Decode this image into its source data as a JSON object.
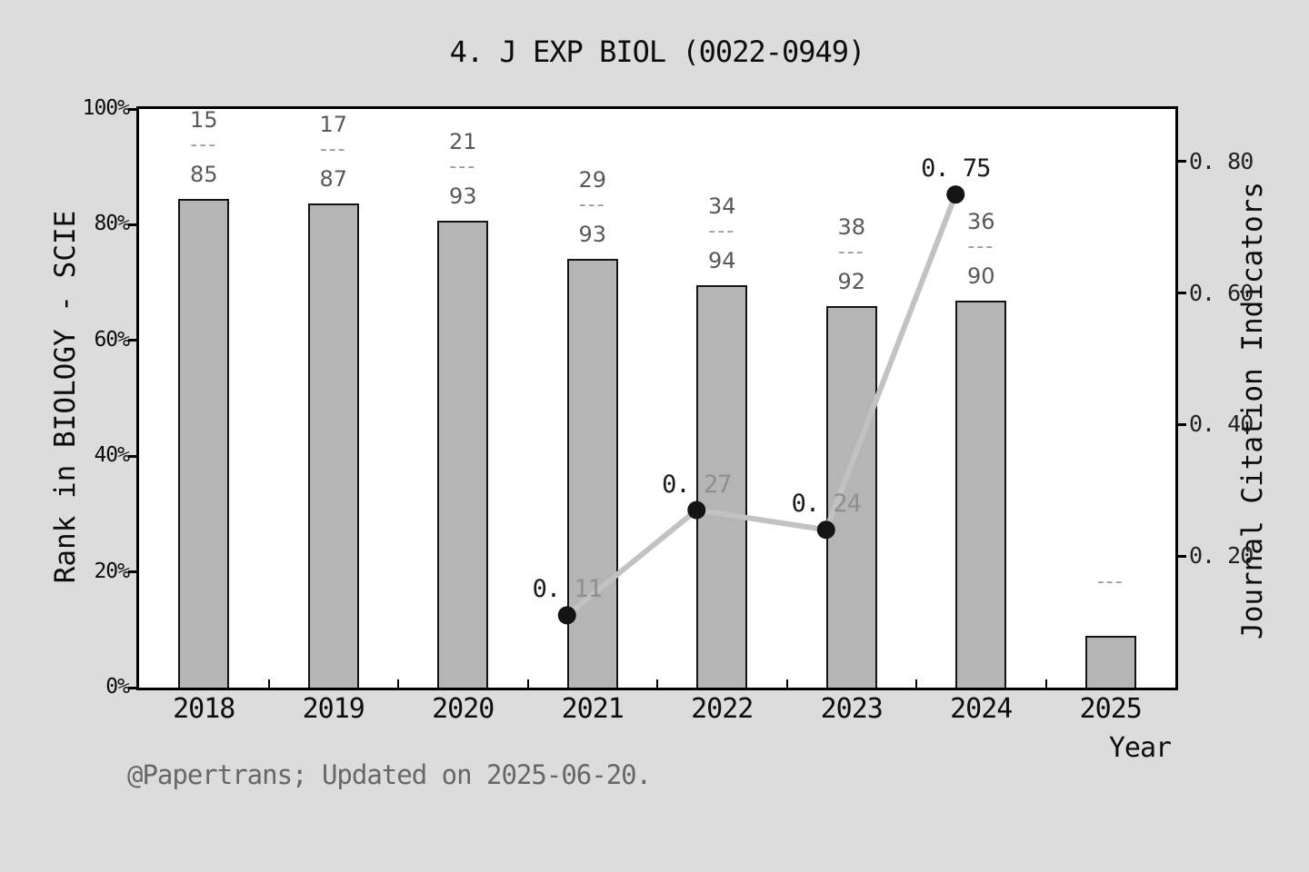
{
  "title": "4. J EXP BIOL (0022-0949)",
  "footer": "@Papertrans; Updated on 2025-06-20.",
  "chart_data": {
    "type": "bar",
    "title": "4. J EXP BIOL (0022-0949)",
    "xlabel": "Year",
    "ylabel_left": "Rank in BIOLOGY - SCIE",
    "ylabel_right": "Journal Citation Indicators",
    "categories": [
      "2018",
      "2019",
      "2020",
      "2021",
      "2022",
      "2023",
      "2024",
      "2025"
    ],
    "bars": {
      "series_name": "Rank in BIOLOGY - SCIE (percentile)",
      "values_pct": [
        84.5,
        83.7,
        80.7,
        74.1,
        69.6,
        65.9,
        66.8,
        9.0
      ],
      "rank_labels": [
        {
          "numerator": "15",
          "denominator": "85"
        },
        {
          "numerator": "17",
          "denominator": "87"
        },
        {
          "numerator": "21",
          "denominator": "93"
        },
        {
          "numerator": "29",
          "denominator": "93"
        },
        {
          "numerator": "34",
          "denominator": "94"
        },
        {
          "numerator": "38",
          "denominator": "92"
        },
        {
          "numerator": "36",
          "denominator": "90"
        },
        {
          "numerator": "",
          "denominator": ""
        }
      ],
      "dash_text": "---"
    },
    "line": {
      "series_name": "Journal Citation Indicators",
      "points": [
        {
          "category": "2021",
          "value": 0.11,
          "label_prefix": "0.",
          "label_digits": " 11",
          "digits_color": "#8f8f8f"
        },
        {
          "category": "2022",
          "value": 0.27,
          "label_prefix": "0.",
          "label_digits": " 27",
          "digits_color": "#8f8f8f"
        },
        {
          "category": "2023",
          "value": 0.24,
          "label_prefix": "0.",
          "label_digits": " 24",
          "digits_color": "#8f8f8f"
        },
        {
          "category": "2024",
          "value": 0.75,
          "label_prefix": "0.",
          "label_digits": " 75",
          "digits_color": "#1a1a1a"
        }
      ]
    },
    "left_axis": {
      "tick_labels": [
        "0%",
        "20%",
        "40%",
        "60%",
        "80%",
        "100%"
      ],
      "tick_values": [
        0,
        20,
        40,
        60,
        80,
        100
      ],
      "range": [
        0,
        100
      ]
    },
    "right_axis": {
      "tick_labels": [
        "0. 20",
        "0. 40",
        "0. 60",
        "0. 80"
      ],
      "tick_values": [
        0.2,
        0.4,
        0.6,
        0.8
      ],
      "range": [
        0,
        0.88
      ]
    },
    "grid": false,
    "legend": "none",
    "colors": {
      "background": "#dcdcdc",
      "plot_background": "#ffffff",
      "bar_fill": "#b5b5b5",
      "bar_edge": "#141414",
      "line": "#c2c2c2",
      "marker": "#141414",
      "fraction_text": "#595959",
      "dash_text": "#9a9a9a",
      "footer_text": "#676767"
    }
  }
}
